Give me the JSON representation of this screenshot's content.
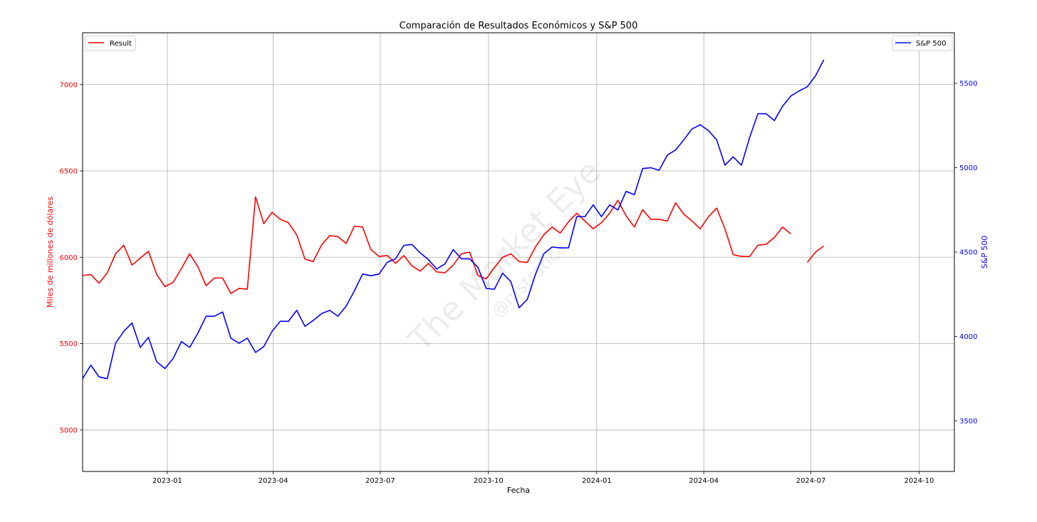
{
  "chart_data": {
    "type": "line",
    "title": "Comparación de Resultados Económicos y S&P 500",
    "xlabel": "Fecha",
    "ylabel_left": "Miles de millones de dólares",
    "ylabel_right": "S&P 500",
    "x_ticks": [
      "2023-01",
      "2023-04",
      "2023-07",
      "2023-10",
      "2024-01",
      "2024-04",
      "2024-07",
      "2024-10"
    ],
    "x_range": [
      "2022-10-21",
      "2024-10-31"
    ],
    "y_left": {
      "range": [
        4760,
        7300
      ],
      "ticks": [
        5000,
        5500,
        6000,
        6500,
        7000
      ],
      "color": "#ff0000"
    },
    "y_right": {
      "range": [
        3200,
        5800
      ],
      "ticks": [
        3500,
        4000,
        4500,
        5000,
        5500
      ],
      "color": "#0000ff"
    },
    "grid": true,
    "series": [
      {
        "name": "Result",
        "axis": "left",
        "color": "#ff0000",
        "legend_position": "top-left",
        "x": [
          "2022-10-21",
          "2022-10-28",
          "2022-11-04",
          "2022-11-11",
          "2022-11-18",
          "2022-11-25",
          "2022-12-02",
          "2022-12-09",
          "2022-12-16",
          "2022-12-23",
          "2022-12-30",
          "2023-01-06",
          "2023-01-13",
          "2023-01-20",
          "2023-01-27",
          "2023-02-03",
          "2023-02-10",
          "2023-02-17",
          "2023-02-24",
          "2023-03-03",
          "2023-03-10",
          "2023-03-17",
          "2023-03-24",
          "2023-03-31",
          "2023-04-07",
          "2023-04-14",
          "2023-04-21",
          "2023-04-28",
          "2023-05-05",
          "2023-05-12",
          "2023-05-19",
          "2023-05-26",
          "2023-06-02",
          "2023-06-09",
          "2023-06-16",
          "2023-06-23",
          "2023-06-30",
          "2023-07-07",
          "2023-07-14",
          "2023-07-21",
          "2023-07-28",
          "2023-08-04",
          "2023-08-11",
          "2023-08-18",
          "2023-08-25",
          "2023-09-01",
          "2023-09-08",
          "2023-09-15",
          "2023-09-22",
          "2023-09-29",
          "2023-10-06",
          "2023-10-13",
          "2023-10-20",
          "2023-10-27",
          "2023-11-03",
          "2023-11-10",
          "2023-11-17",
          "2023-11-24",
          "2023-12-01",
          "2023-12-08",
          "2023-12-15",
          "2023-12-22",
          "2023-12-29",
          "2024-01-05",
          "2024-01-12",
          "2024-01-19",
          "2024-01-26",
          "2024-02-02",
          "2024-02-09",
          "2024-02-16",
          "2024-02-23",
          "2024-03-01",
          "2024-03-08",
          "2024-03-15",
          "2024-03-22",
          "2024-03-29",
          "2024-04-05",
          "2024-04-12",
          "2024-04-19",
          "2024-04-26",
          "2024-05-03",
          "2024-05-10",
          "2024-05-17",
          "2024-05-24",
          "2024-05-31",
          "2024-06-07",
          "2024-06-14",
          "2024-06-21",
          "2024-06-28",
          "2024-07-05",
          "2024-07-12"
        ],
        "values": [
          5895,
          5900,
          5850,
          5910,
          6020,
          6070,
          5955,
          5995,
          6035,
          5900,
          5830,
          5855,
          5935,
          6020,
          5945,
          5835,
          5880,
          5880,
          5790,
          5820,
          5815,
          6350,
          6195,
          6260,
          6220,
          6200,
          6130,
          5990,
          5975,
          6070,
          6125,
          6120,
          6080,
          6180,
          6175,
          6045,
          6005,
          6010,
          5965,
          6010,
          5950,
          5920,
          5965,
          5915,
          5910,
          5955,
          6020,
          6030,
          5895,
          5875,
          5940,
          6000,
          6020,
          5975,
          5970,
          6060,
          6130,
          6175,
          6140,
          6205,
          6255,
          6210,
          6165,
          6200,
          6255,
          6330,
          6240,
          6175,
          6275,
          6220,
          6220,
          6210,
          6315,
          6250,
          6210,
          6165,
          6235,
          6285,
          6165,
          6015,
          6005,
          6005,
          6070,
          6075,
          6115,
          6175,
          6135,
          null,
          5970,
          6030,
          6065
        ]
      },
      {
        "name": "S&P 500",
        "axis": "right",
        "color": "#0000ff",
        "legend_position": "top-right",
        "x": [
          "2022-10-21",
          "2022-10-28",
          "2022-11-04",
          "2022-11-11",
          "2022-11-18",
          "2022-11-25",
          "2022-12-02",
          "2022-12-09",
          "2022-12-16",
          "2022-12-23",
          "2022-12-30",
          "2023-01-06",
          "2023-01-13",
          "2023-01-20",
          "2023-01-27",
          "2023-02-03",
          "2023-02-10",
          "2023-02-17",
          "2023-02-24",
          "2023-03-03",
          "2023-03-10",
          "2023-03-17",
          "2023-03-24",
          "2023-03-31",
          "2023-04-07",
          "2023-04-14",
          "2023-04-21",
          "2023-04-28",
          "2023-05-05",
          "2023-05-12",
          "2023-05-19",
          "2023-05-26",
          "2023-06-02",
          "2023-06-09",
          "2023-06-16",
          "2023-06-23",
          "2023-06-30",
          "2023-07-07",
          "2023-07-14",
          "2023-07-21",
          "2023-07-28",
          "2023-08-04",
          "2023-08-11",
          "2023-08-18",
          "2023-08-25",
          "2023-09-01",
          "2023-09-08",
          "2023-09-15",
          "2023-09-22",
          "2023-09-29",
          "2023-10-06",
          "2023-10-13",
          "2023-10-20",
          "2023-10-27",
          "2023-11-03",
          "2023-11-10",
          "2023-11-17",
          "2023-11-24",
          "2023-12-01",
          "2023-12-08",
          "2023-12-15",
          "2023-12-22",
          "2023-12-29",
          "2024-01-05",
          "2024-01-12",
          "2024-01-19",
          "2024-01-26",
          "2024-02-02",
          "2024-02-09",
          "2024-02-16",
          "2024-02-23",
          "2024-03-01",
          "2024-03-08",
          "2024-03-15",
          "2024-03-22",
          "2024-03-29",
          "2024-04-05",
          "2024-04-12",
          "2024-04-19",
          "2024-04-26",
          "2024-05-03",
          "2024-05-10",
          "2024-05-17",
          "2024-05-24",
          "2024-05-31",
          "2024-06-07",
          "2024-06-14",
          "2024-06-21",
          "2024-06-28",
          "2024-07-05",
          "2024-07-12"
        ],
        "values": [
          3750,
          3830,
          3760,
          3750,
          3960,
          4030,
          4080,
          3935,
          3995,
          3850,
          3810,
          3870,
          3970,
          3935,
          4020,
          4120,
          4120,
          4145,
          3990,
          3960,
          3990,
          3905,
          3940,
          4030,
          4090,
          4090,
          4155,
          4060,
          4095,
          4135,
          4155,
          4120,
          4180,
          4270,
          4370,
          4360,
          4370,
          4440,
          4460,
          4540,
          4545,
          4495,
          4455,
          4400,
          4430,
          4515,
          4460,
          4460,
          4410,
          4285,
          4280,
          4375,
          4325,
          4170,
          4220,
          4370,
          4490,
          4530,
          4525,
          4525,
          4710,
          4710,
          4780,
          4710,
          4780,
          4750,
          4860,
          4840,
          4995,
          5000,
          4985,
          5075,
          5105,
          5165,
          5230,
          5255,
          5220,
          5165,
          5015,
          5065,
          5015,
          5180,
          5320,
          5320,
          5280,
          5365,
          5425,
          5455,
          5480,
          5545,
          5640
        ]
      }
    ]
  },
  "watermark": {
    "line1": "The Market Eye",
    "line2": "@mstratica"
  }
}
